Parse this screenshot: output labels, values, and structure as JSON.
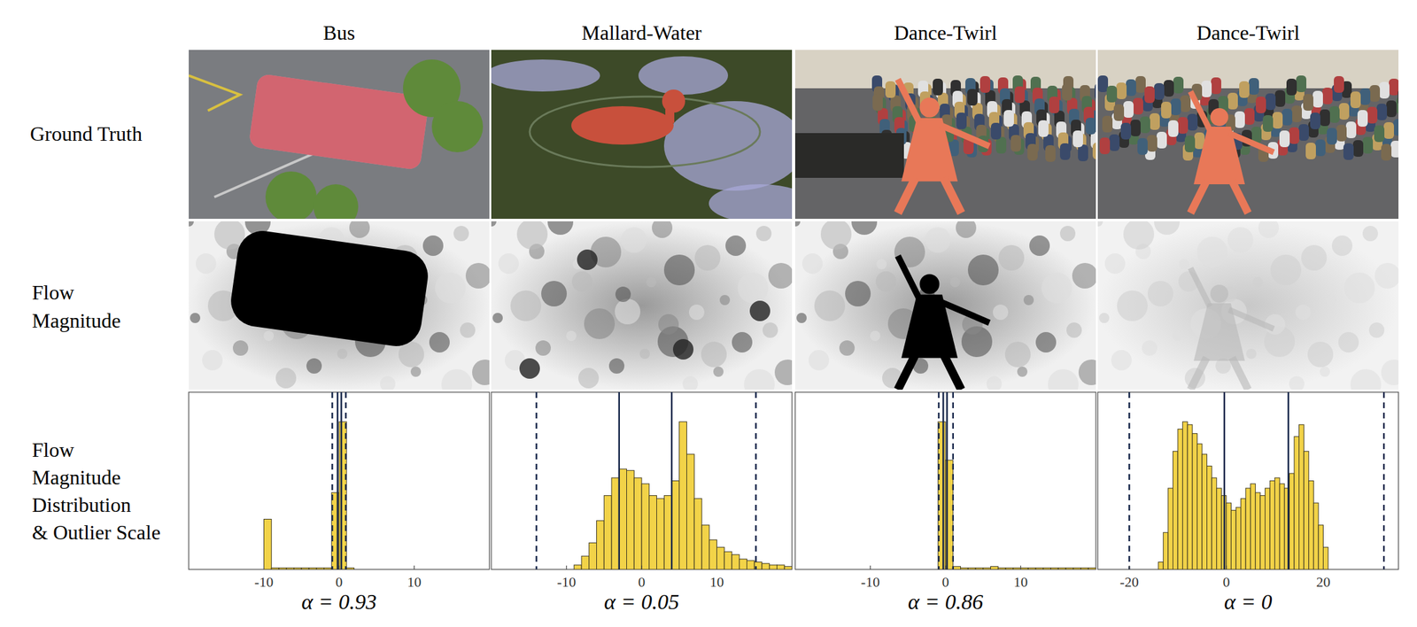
{
  "figure": {
    "columns": [
      "Bus",
      "Mallard-Water",
      "Dance-Twirl",
      "Dance-Twirl"
    ],
    "row_labels": [
      [
        "Ground Truth"
      ],
      [
        "Flow",
        "Magnitude"
      ],
      [
        "Flow",
        "Magnitude",
        "Distribution",
        "& Outlier Scale"
      ]
    ]
  },
  "chart_data": [
    {
      "type": "histogram",
      "xlabel": "α = 0.93",
      "color": "#f2d348",
      "tick_labels": "x",
      "bins": [
        -20,
        -19,
        -18,
        -17,
        -16,
        -15,
        -14,
        -13,
        -12,
        -11,
        -10,
        -9,
        -8,
        -7,
        -6,
        -5,
        -4,
        -3,
        -2,
        -1,
        0,
        1,
        2,
        3,
        4,
        5,
        6,
        7,
        8,
        9,
        10,
        11,
        12,
        13,
        14,
        15,
        16,
        17,
        18,
        19,
        20
      ],
      "counts": [
        0,
        0,
        0,
        0,
        0,
        0,
        0,
        0,
        0,
        0,
        34,
        1,
        1,
        1,
        1,
        1,
        1,
        1,
        1,
        52,
        100,
        1,
        0,
        0,
        0,
        0,
        0,
        0,
        0,
        0,
        0,
        0,
        0,
        0,
        0,
        0,
        0,
        0,
        0,
        0
      ],
      "xlim": [
        -20,
        20
      ],
      "ylim": [
        0,
        120
      ],
      "xticks": [
        -10,
        0,
        10
      ],
      "solid_lines": [
        -0.2,
        0.3
      ],
      "dashed_lines": [
        -0.9,
        0.9
      ]
    },
    {
      "type": "histogram",
      "xlabel": "α = 0.05",
      "color": "#f2d348",
      "tick_labels": "x",
      "bins": [
        -9,
        -8,
        -7,
        -6,
        -5,
        -4,
        -3,
        -2,
        -1,
        0,
        1,
        2,
        3,
        4,
        5,
        6,
        7,
        8,
        9,
        10,
        11,
        12,
        13,
        14,
        15,
        16,
        17,
        18,
        19,
        20
      ],
      "counts": [
        3,
        9,
        18,
        33,
        50,
        62,
        68,
        67,
        62,
        58,
        50,
        48,
        50,
        60,
        100,
        78,
        48,
        30,
        20,
        15,
        12,
        10,
        7,
        6,
        5,
        4,
        3,
        3,
        2
      ],
      "xlim": [
        -20,
        20
      ],
      "ylim": [
        0,
        120
      ],
      "xticks": [
        -10,
        0,
        10
      ],
      "solid_lines": [
        -3,
        4
      ],
      "dashed_lines": [
        -14,
        15.2
      ]
    },
    {
      "type": "histogram",
      "xlabel": "α = 0.86",
      "color": "#f2d348",
      "tick_labels": "x",
      "bins": [
        -20,
        -19,
        -18,
        -17,
        -16,
        -15,
        -14,
        -13,
        -12,
        -11,
        -10,
        -9,
        -8,
        -7,
        -6,
        -5,
        -4,
        -3,
        -2,
        -1,
        0,
        1,
        2,
        3,
        4,
        5,
        6,
        7,
        8,
        9,
        10,
        11,
        12,
        13,
        14,
        15,
        16,
        17,
        18,
        19,
        20
      ],
      "counts": [
        0,
        0,
        0,
        0,
        0,
        0,
        0,
        0,
        0,
        0,
        0,
        0,
        0,
        0,
        0,
        0,
        0,
        0,
        0,
        100,
        74,
        2,
        1,
        1,
        1,
        1,
        2,
        1,
        1,
        1,
        1,
        1,
        1,
        1,
        1,
        1,
        1,
        1,
        1,
        1
      ],
      "xlim": [
        -20,
        20
      ],
      "ylim": [
        0,
        120
      ],
      "xticks": [
        -10,
        0,
        10
      ],
      "solid_lines": [
        -0.3,
        0.2
      ],
      "dashed_lines": [
        -0.9,
        1.0
      ]
    },
    {
      "type": "histogram",
      "xlabel": "α = 0",
      "color": "#f2d348",
      "tick_labels": "x",
      "bins": [
        -14,
        -13,
        -12,
        -11,
        -10,
        -9,
        -8,
        -7,
        -6,
        -5,
        -4,
        -3,
        -2,
        -1,
        0,
        1,
        2,
        3,
        4,
        5,
        6,
        7,
        8,
        9,
        10,
        11,
        12,
        13,
        14,
        15,
        16,
        17,
        18,
        19,
        20,
        21
      ],
      "counts": [
        5,
        25,
        55,
        80,
        95,
        100,
        98,
        92,
        85,
        78,
        70,
        62,
        55,
        50,
        45,
        40,
        42,
        48,
        55,
        58,
        52,
        50,
        55,
        60,
        62,
        58,
        55,
        65,
        90,
        98,
        80,
        60,
        45,
        30,
        15
      ],
      "xlim": [
        -26.5,
        35.5
      ],
      "ylim": [
        0,
        120
      ],
      "xticks": [
        -20,
        0,
        20
      ],
      "solid_lines": [
        -0.4,
        12.8
      ],
      "dashed_lines": [
        -20,
        32.5
      ]
    }
  ]
}
